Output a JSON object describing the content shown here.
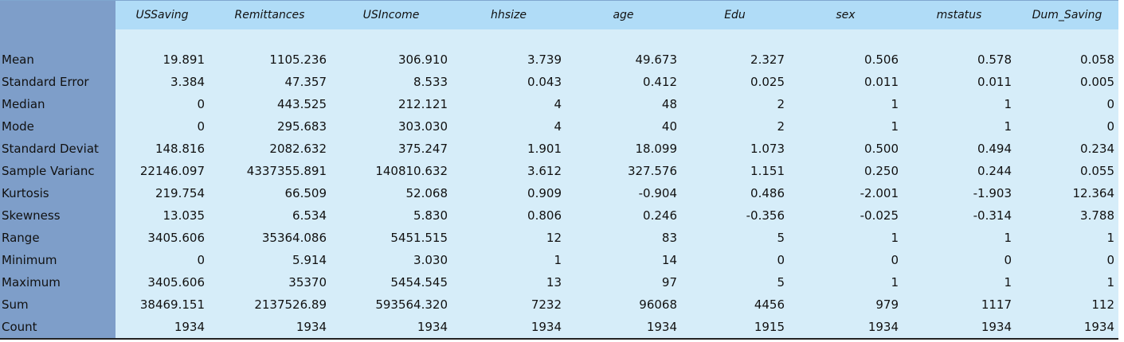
{
  "table": {
    "columns": [
      "USSaving",
      "Remittances",
      "USIncome",
      "hhsize",
      "age",
      "Edu",
      "sex",
      "mstatus",
      "Dum_Saving"
    ],
    "rows": [
      {
        "label": "Mean",
        "values": [
          "19.891",
          "1105.236",
          "306.910",
          "3.739",
          "49.673",
          "2.327",
          "0.506",
          "0.578",
          "0.058"
        ]
      },
      {
        "label": "Standard Error",
        "values": [
          "3.384",
          "47.357",
          "8.533",
          "0.043",
          "0.412",
          "0.025",
          "0.011",
          "0.011",
          "0.005"
        ]
      },
      {
        "label": "Median",
        "values": [
          "0",
          "443.525",
          "212.121",
          "4",
          "48",
          "2",
          "1",
          "1",
          "0"
        ]
      },
      {
        "label": "Mode",
        "values": [
          "0",
          "295.683",
          "303.030",
          "4",
          "40",
          "2",
          "1",
          "1",
          "0"
        ]
      },
      {
        "label": "Standard Deviat",
        "values": [
          "148.816",
          "2082.632",
          "375.247",
          "1.901",
          "18.099",
          "1.073",
          "0.500",
          "0.494",
          "0.234"
        ]
      },
      {
        "label": "Sample Varianc",
        "values": [
          "22146.097",
          "4337355.891",
          "140810.632",
          "3.612",
          "327.576",
          "1.151",
          "0.250",
          "0.244",
          "0.055"
        ]
      },
      {
        "label": "Kurtosis",
        "values": [
          "219.754",
          "66.509",
          "52.068",
          "0.909",
          "-0.904",
          "0.486",
          "-2.001",
          "-1.903",
          "12.364"
        ]
      },
      {
        "label": "Skewness",
        "values": [
          "13.035",
          "6.534",
          "5.830",
          "0.806",
          "0.246",
          "-0.356",
          "-0.025",
          "-0.314",
          "3.788"
        ]
      },
      {
        "label": "Range",
        "values": [
          "3405.606",
          "35364.086",
          "5451.515",
          "12",
          "83",
          "5",
          "1",
          "1",
          "1"
        ]
      },
      {
        "label": "Minimum",
        "values": [
          "0",
          "5.914",
          "3.030",
          "1",
          "14",
          "0",
          "0",
          "0",
          "0"
        ]
      },
      {
        "label": "Maximum",
        "values": [
          "3405.606",
          "35370",
          "5454.545",
          "13",
          "97",
          "5",
          "1",
          "1",
          "1"
        ]
      },
      {
        "label": "Sum",
        "values": [
          "38469.151",
          "2137526.89",
          "593564.320",
          "7232",
          "96068",
          "4456",
          "979",
          "1117",
          "112"
        ]
      },
      {
        "label": "Count",
        "values": [
          "1934",
          "1934",
          "1934",
          "1934",
          "1934",
          "1915",
          "1934",
          "1934",
          "1934"
        ]
      }
    ]
  }
}
